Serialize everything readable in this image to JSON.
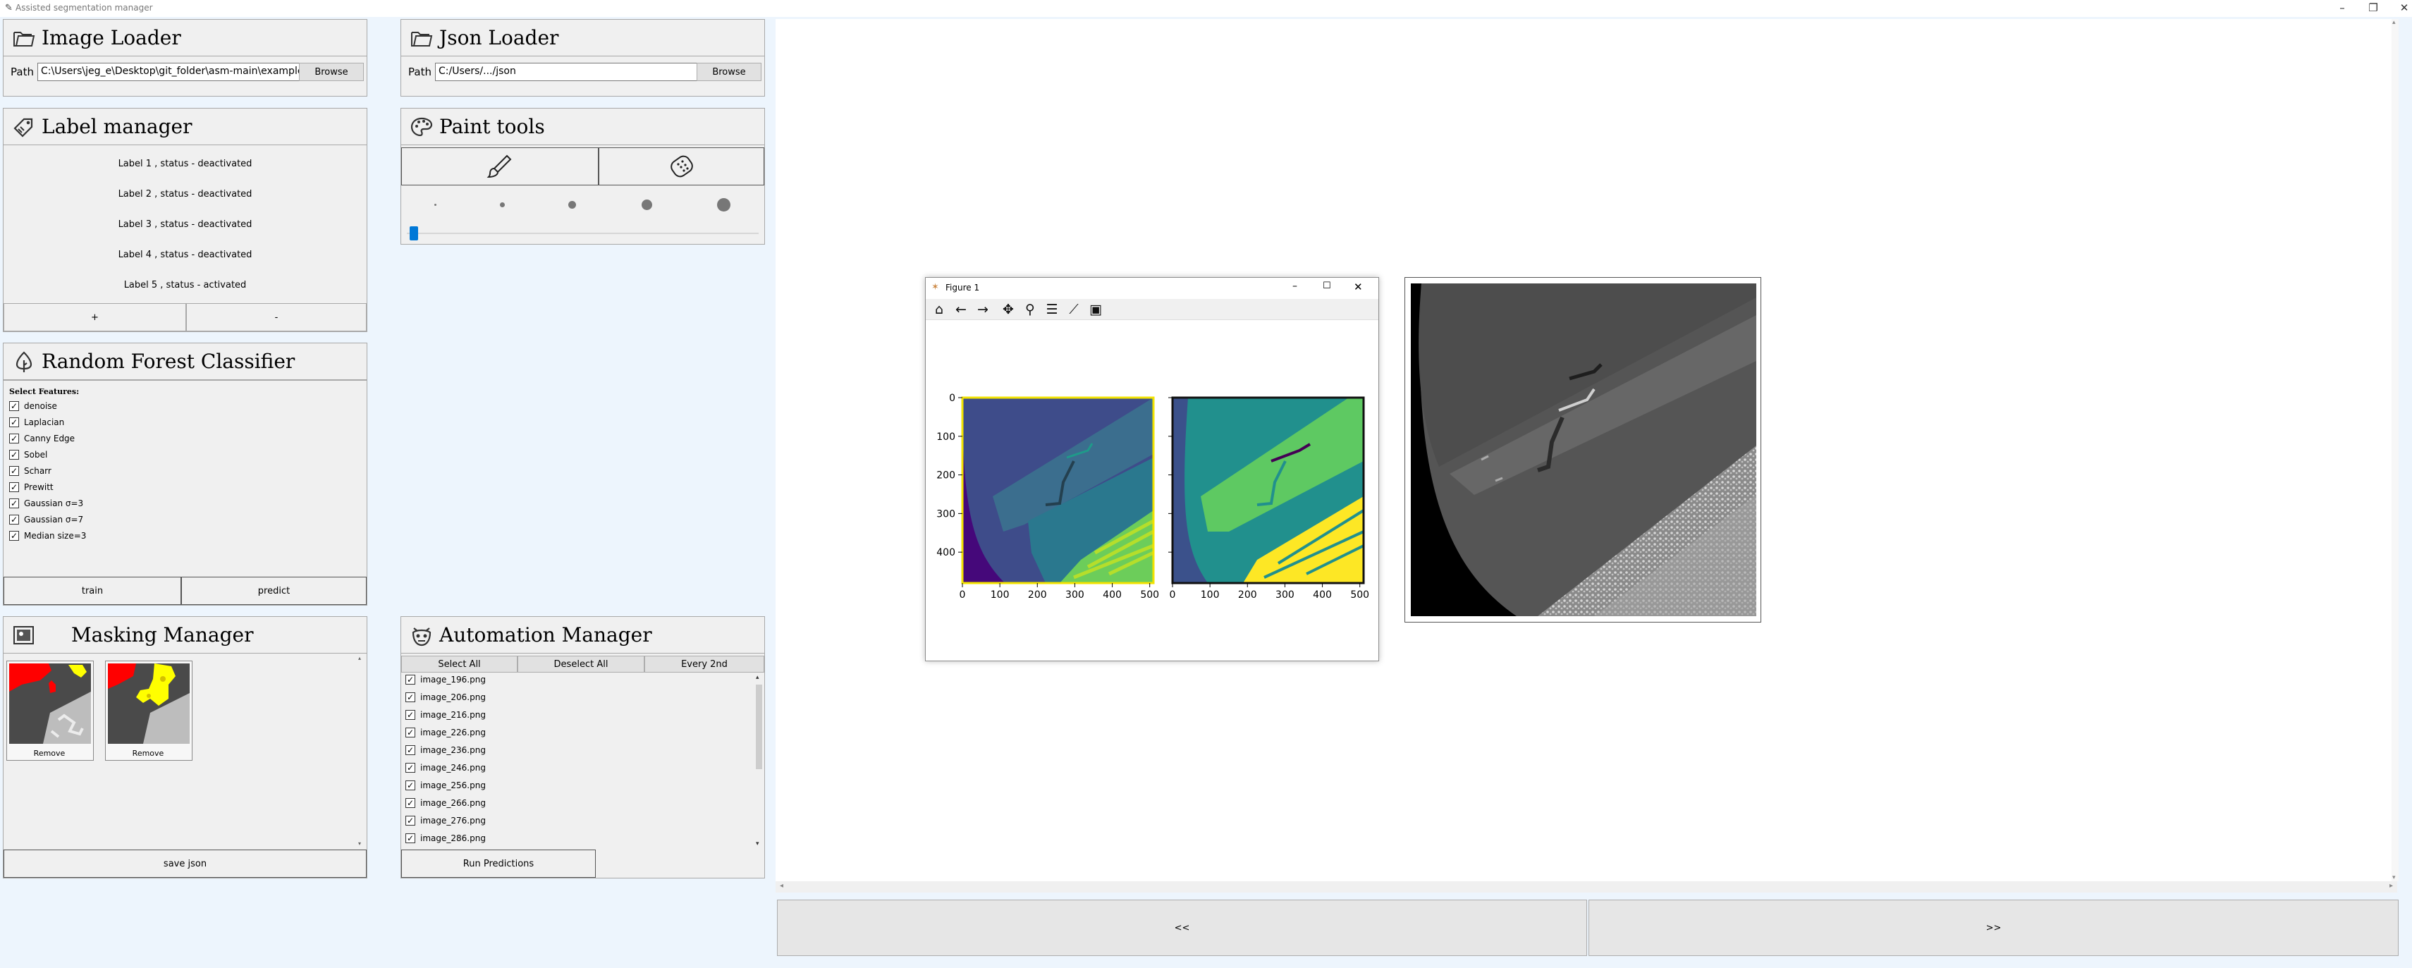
{
  "window": {
    "title": "Assisted segmentation manager"
  },
  "image_loader": {
    "title": "Image Loader",
    "path_label": "Path",
    "path_value": "C:\\Users\\jeg_e\\Desktop\\git_folder\\asm-main\\examples",
    "browse_label": "Browse"
  },
  "json_loader": {
    "title": "Json Loader",
    "path_label": "Path",
    "path_value": "C:/Users/.../json",
    "browse_label": "Browse"
  },
  "label_manager": {
    "title": "Label manager",
    "labels": [
      "Label 1 , status - deactivated",
      "Label 2 , status - deactivated",
      "Label 3 , status - deactivated",
      "Label 4 , status - deactivated",
      "Label 5 , status - activated"
    ],
    "add_label": "+",
    "remove_label": "-"
  },
  "paint_tools": {
    "title": "Paint tools",
    "brush_icon": "paintbrush-icon",
    "eraser_icon": "eraser-icon",
    "brush_size": 0.0
  },
  "rf_classifier": {
    "title": "Random Forest Classifier",
    "select_label": "Select Features:",
    "features": [
      "denoise",
      "Laplacian",
      "Canny Edge",
      "Sobel",
      "Scharr",
      "Prewitt",
      "Gaussian σ=3",
      "Gaussian σ=7",
      "Median size=3"
    ],
    "train_label": "train",
    "predict_label": "predict"
  },
  "masking_manager": {
    "title": "Masking Manager",
    "remove_label": "Remove",
    "save_label": "save json"
  },
  "automation_manager": {
    "title": "Automation Manager",
    "select_all": "Select All",
    "deselect_all": "Deselect All",
    "every_2nd": "Every 2nd",
    "images": [
      "image_196.png",
      "image_206.png",
      "image_216.png",
      "image_226.png",
      "image_236.png",
      "image_246.png",
      "image_256.png",
      "image_266.png",
      "image_276.png",
      "image_286.png"
    ],
    "run_label": "Run Predictions"
  },
  "figure": {
    "title": "Figure 1",
    "x_ticks": [
      "0",
      "100",
      "200",
      "300",
      "400",
      "500"
    ],
    "y_ticks": [
      "0",
      "100",
      "200",
      "300",
      "400"
    ]
  },
  "nav": {
    "prev_label": "<<",
    "next_label": ">>"
  },
  "colors": {
    "accent": "#0078d7",
    "background": "#edf5fd",
    "panel": "#f0f0f0"
  }
}
